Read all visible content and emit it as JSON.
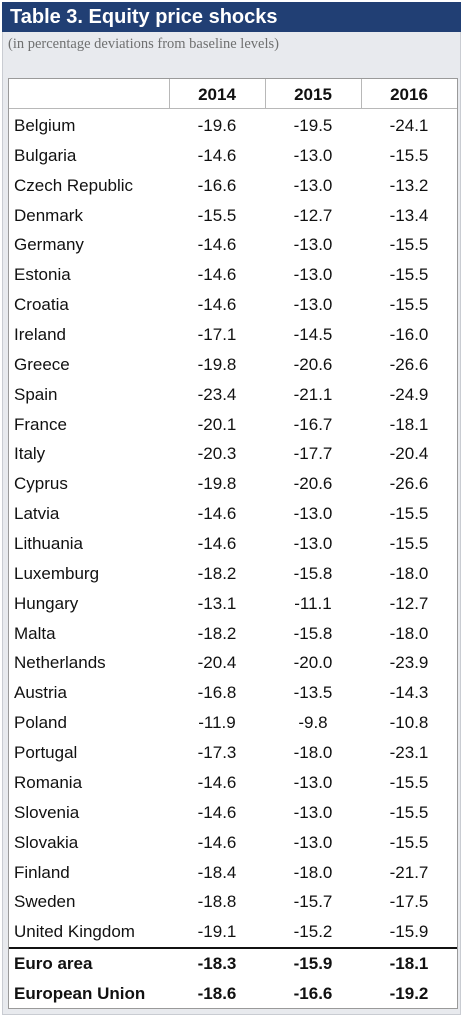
{
  "title": "Table 3. Equity price shocks",
  "subtitle": "(in percentage deviations from baseline levels)",
  "columns": [
    "2014",
    "2015",
    "2016"
  ],
  "rows": [
    {
      "name": "Belgium",
      "v2014": "-19.6",
      "v2015": "-19.5",
      "v2016": "-24.1"
    },
    {
      "name": "Bulgaria",
      "v2014": "-14.6",
      "v2015": "-13.0",
      "v2016": "-15.5"
    },
    {
      "name": "Czech Republic",
      "v2014": "-16.6",
      "v2015": "-13.0",
      "v2016": "-13.2"
    },
    {
      "name": "Denmark",
      "v2014": "-15.5",
      "v2015": "-12.7",
      "v2016": "-13.4"
    },
    {
      "name": "Germany",
      "v2014": "-14.6",
      "v2015": "-13.0",
      "v2016": "-15.5"
    },
    {
      "name": "Estonia",
      "v2014": "-14.6",
      "v2015": "-13.0",
      "v2016": "-15.5"
    },
    {
      "name": "Croatia",
      "v2014": "-14.6",
      "v2015": "-13.0",
      "v2016": "-15.5"
    },
    {
      "name": "Ireland",
      "v2014": "-17.1",
      "v2015": "-14.5",
      "v2016": "-16.0"
    },
    {
      "name": "Greece",
      "v2014": "-19.8",
      "v2015": "-20.6",
      "v2016": "-26.6"
    },
    {
      "name": "Spain",
      "v2014": "-23.4",
      "v2015": "-21.1",
      "v2016": "-24.9"
    },
    {
      "name": "France",
      "v2014": "-20.1",
      "v2015": "-16.7",
      "v2016": "-18.1"
    },
    {
      "name": "Italy",
      "v2014": "-20.3",
      "v2015": "-17.7",
      "v2016": "-20.4"
    },
    {
      "name": "Cyprus",
      "v2014": "-19.8",
      "v2015": "-20.6",
      "v2016": "-26.6"
    },
    {
      "name": "Latvia",
      "v2014": "-14.6",
      "v2015": "-13.0",
      "v2016": "-15.5"
    },
    {
      "name": "Lithuania",
      "v2014": "-14.6",
      "v2015": "-13.0",
      "v2016": "-15.5"
    },
    {
      "name": "Luxemburg",
      "v2014": "-18.2",
      "v2015": "-15.8",
      "v2016": "-18.0"
    },
    {
      "name": "Hungary",
      "v2014": "-13.1",
      "v2015": "-11.1",
      "v2016": "-12.7"
    },
    {
      "name": "Malta",
      "v2014": "-18.2",
      "v2015": "-15.8",
      "v2016": "-18.0"
    },
    {
      "name": "Netherlands",
      "v2014": "-20.4",
      "v2015": "-20.0",
      "v2016": "-23.9"
    },
    {
      "name": "Austria",
      "v2014": "-16.8",
      "v2015": "-13.5",
      "v2016": "-14.3"
    },
    {
      "name": "Poland",
      "v2014": "-11.9",
      "v2015": "-9.8",
      "v2016": "-10.8"
    },
    {
      "name": "Portugal",
      "v2014": "-17.3",
      "v2015": "-18.0",
      "v2016": "-23.1"
    },
    {
      "name": "Romania",
      "v2014": "-14.6",
      "v2015": "-13.0",
      "v2016": "-15.5"
    },
    {
      "name": "Slovenia",
      "v2014": "-14.6",
      "v2015": "-13.0",
      "v2016": "-15.5"
    },
    {
      "name": "Slovakia",
      "v2014": "-14.6",
      "v2015": "-13.0",
      "v2016": "-15.5"
    },
    {
      "name": "Finland",
      "v2014": "-18.4",
      "v2015": "-18.0",
      "v2016": "-21.7"
    },
    {
      "name": "Sweden",
      "v2014": "-18.8",
      "v2015": "-15.7",
      "v2016": "-17.5"
    },
    {
      "name": "United Kingdom",
      "v2014": "-19.1",
      "v2015": "-15.2",
      "v2016": "-15.9"
    }
  ],
  "totals": [
    {
      "name": "Euro area",
      "v2014": "-18.3",
      "v2015": "-15.9",
      "v2016": "-18.1"
    },
    {
      "name": "European Union",
      "v2014": "-18.6",
      "v2015": "-16.6",
      "v2016": "-19.2"
    }
  ],
  "colors": {
    "title_bar": "#213f74",
    "title_text": "#ffffff",
    "subtitle_text": "#6f7070",
    "panel_background": "#e8eaee"
  }
}
